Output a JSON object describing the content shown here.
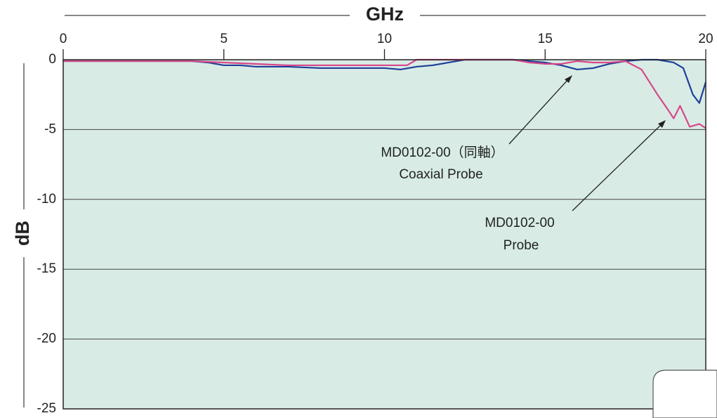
{
  "chart_data": {
    "type": "line",
    "xlabel": "GHz",
    "ylabel": "dB",
    "xlim": [
      0,
      20
    ],
    "xticks": [
      0,
      5,
      10,
      15,
      20
    ],
    "ylim": [
      -25,
      0
    ],
    "yticks": [
      -25,
      -20,
      -15,
      -10,
      -5,
      0
    ],
    "grid": true,
    "series": [
      {
        "color": "#1f3f99",
        "x": [
          0,
          1,
          2,
          3,
          4,
          4.5,
          5,
          5.5,
          6,
          7,
          8,
          9,
          10,
          10.5,
          11,
          11.5,
          12,
          12.5,
          13,
          14,
          15,
          15.5,
          16,
          16.5,
          17,
          17.5,
          18,
          18.5,
          19,
          19.3,
          19.6,
          19.8,
          20
        ],
        "values": [
          -0.1,
          -0.1,
          -0.1,
          -0.1,
          -0.1,
          -0.2,
          -0.4,
          -0.4,
          -0.5,
          -0.5,
          -0.6,
          -0.6,
          -0.6,
          -0.7,
          -0.5,
          -0.4,
          -0.2,
          0,
          0,
          0,
          -0.2,
          -0.4,
          -0.7,
          -0.6,
          -0.3,
          -0.1,
          0,
          0,
          -0.2,
          -0.6,
          -2.5,
          -3.1,
          -1.6
        ]
      },
      {
        "color": "#d9468a",
        "x": [
          0,
          2,
          4,
          5,
          6,
          7,
          8,
          9,
          10,
          10.7,
          11,
          12,
          13,
          14,
          14.5,
          15,
          15.5,
          16,
          16.5,
          17,
          17.5,
          18,
          18.5,
          18.8,
          19,
          19.2,
          19.5,
          19.8,
          20
        ],
        "values": [
          -0.1,
          -0.1,
          -0.1,
          -0.2,
          -0.3,
          -0.4,
          -0.4,
          -0.4,
          -0.4,
          -0.4,
          0,
          0,
          0,
          0,
          -0.2,
          -0.3,
          -0.3,
          -0.1,
          -0.2,
          -0.2,
          -0.1,
          -0.7,
          -2.5,
          -3.5,
          -4.2,
          -3.3,
          -4.8,
          -4.6,
          -4.9
        ]
      }
    ],
    "annotations": [
      {
        "lines": [
          "MD0102-00（同軸）",
          "Coaxial Probe"
        ]
      },
      {
        "lines": [
          "MD0102-00",
          "Probe"
        ]
      }
    ]
  }
}
